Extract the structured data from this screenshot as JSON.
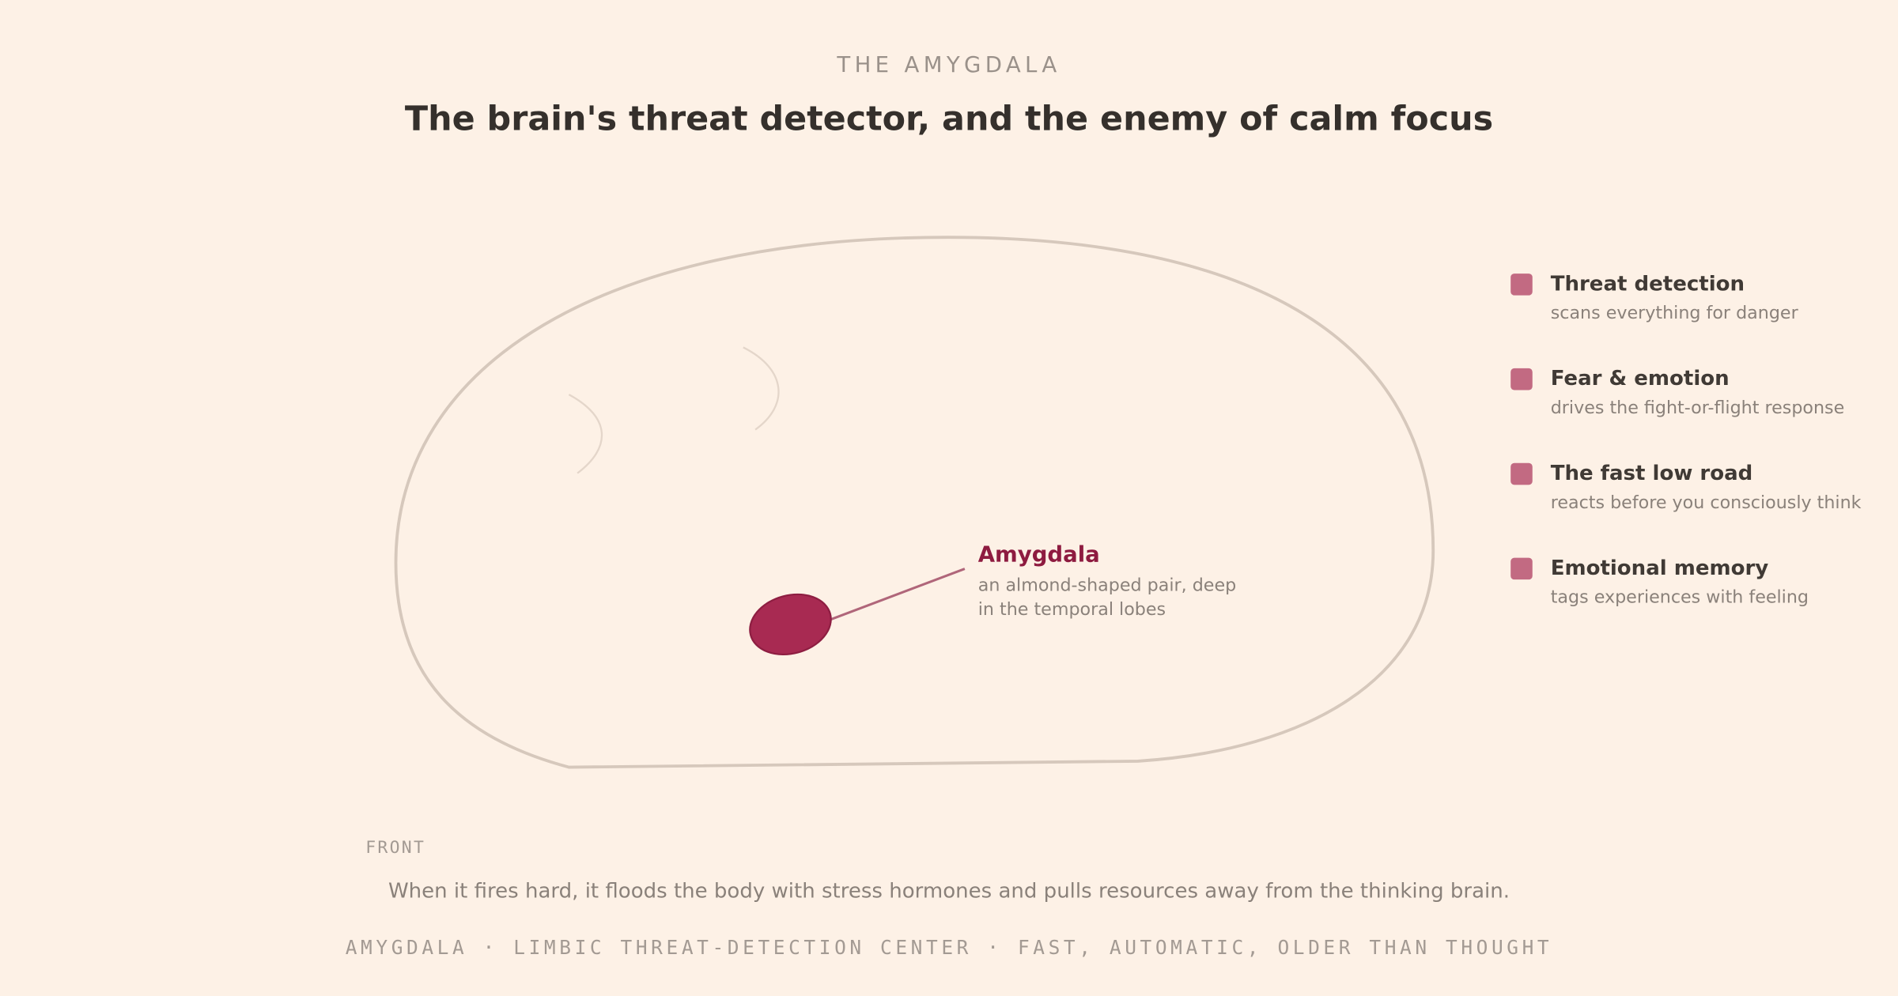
{
  "header": {
    "eyebrow": "THE AMYGDALA",
    "title": "The brain's threat detector, and the enemy of calm focus"
  },
  "diagram": {
    "label": "Amygdala",
    "description": [
      "an almond-shaped pair, deep",
      "in the temporal lobes"
    ],
    "orientation": "FRONT"
  },
  "legend": [
    {
      "title": "Threat detection",
      "text": "scans everything for danger"
    },
    {
      "title": "Fear & emotion",
      "text": "drives the fight-or-flight response"
    },
    {
      "title": "The fast low road",
      "text": "reacts before you consciously think"
    },
    {
      "title": "Emotional memory",
      "text": "tags experiences with feeling"
    }
  ],
  "caption": "When it fires hard, it floods the body with stress hormones and pulls resources away from the thinking brain.",
  "footer": "AMYGDALA · LIMBIC THREAT-DETECTION CENTER · FAST, AUTOMATIC, OLDER THAN THOUGHT"
}
